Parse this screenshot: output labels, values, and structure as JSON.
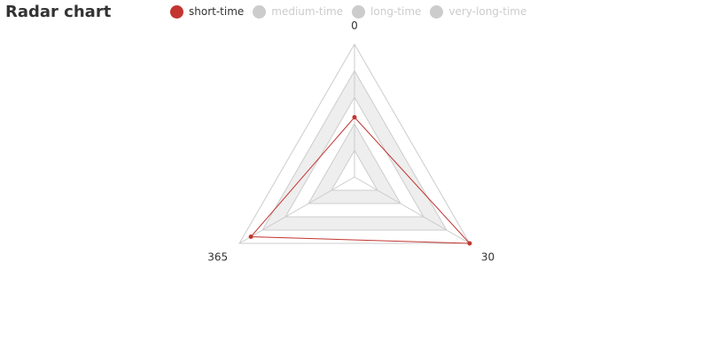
{
  "chart_data": {
    "type": "radar",
    "title": "Radar chart",
    "indicators": [
      "0",
      "30",
      "365"
    ],
    "split_number": 5,
    "split_area_colors": [
      "#ffffff",
      "#eeeeee"
    ],
    "legend": {
      "placement": "top",
      "items": [
        {
          "name": "short-time",
          "color": "#c23531",
          "selected": true
        },
        {
          "name": "medium-time",
          "color": "#2f4554",
          "selected": false
        },
        {
          "name": "long-time",
          "color": "#61a0a8",
          "selected": false
        },
        {
          "name": "very-long-time",
          "color": "#d48265",
          "selected": false
        }
      ]
    },
    "series": [
      {
        "name": "short-time",
        "color": "#c23531",
        "values": [
          0.45,
          1.0,
          0.9
        ]
      }
    ]
  }
}
